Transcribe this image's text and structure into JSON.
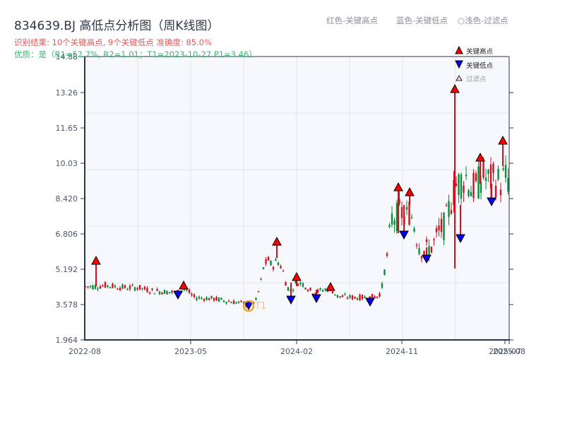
{
  "header": {
    "title": "834639.BJ 高低点分析图（周K线图）",
    "result_line": "识别结果: 10个关键高点, 9个关键低点  准确度: 85.0%",
    "quality_line": "优质：是（R1=52.7%, R2=1.01；T1=2023-10-27 P1=3.46）"
  },
  "top_legend": {
    "red_label": "红色-关键高点",
    "blue_label": "蓝色-关键低点",
    "light_label": "○浅色-过滤点"
  },
  "colors": {
    "up": "#d0101e",
    "down": "#0b8a3a",
    "high_marker": "#ff0000",
    "low_marker": "#0000ee",
    "plot_bg": "#f7f8fb",
    "grid": "#e2e4e8",
    "axis": "#2d3748",
    "t1_ring": "#f0a030"
  },
  "chart_data": {
    "type": "candlestick",
    "title": "834639.BJ 高低点分析图（周K线图）",
    "xlabel": "",
    "ylabel": "",
    "ylim": [
      1.964,
      14.88
    ],
    "yticks": [
      "14.88",
      "13.26",
      "11.65",
      "10.03",
      "8.420",
      "6.806",
      "5.192",
      "3.578",
      "1.964"
    ],
    "xticks": [
      "2022-08",
      "2023-05",
      "2024-02",
      "2024-11",
      "2025-07",
      "2025-08"
    ],
    "grid": true,
    "legend": {
      "position": "upper right",
      "entries": [
        "关键高点",
        "关键低点",
        "过滤点"
      ]
    },
    "key_highs": [
      {
        "date": "2022-09",
        "value": 5.5
      },
      {
        "date": "2023-04",
        "value": 4.5
      },
      {
        "date": "2023-12",
        "value": 6.4
      },
      {
        "date": "2024-02",
        "value": 4.8
      },
      {
        "date": "2024-04",
        "value": 4.4
      },
      {
        "date": "2024-10",
        "value": 9.0
      },
      {
        "date": "2024-11",
        "value": 8.7
      },
      {
        "date": "2025-03",
        "value": 13.4
      },
      {
        "date": "2025-05",
        "value": 10.4
      },
      {
        "date": "2025-07",
        "value": 11.1
      }
    ],
    "key_lows": [
      {
        "date": "2023-04",
        "value": 4.05
      },
      {
        "date": "2023-10",
        "value": 3.46
      },
      {
        "date": "2024-02",
        "value": 3.82
      },
      {
        "date": "2024-03",
        "value": 3.85
      },
      {
        "date": "2024-07",
        "value": 3.72
      },
      {
        "date": "2024-11",
        "value": 6.85
      },
      {
        "date": "2024-12",
        "value": 5.65
      },
      {
        "date": "2025-03",
        "value": 6.6
      },
      {
        "date": "2025-06",
        "value": 8.35
      }
    ],
    "annotations": [
      {
        "label": "T1",
        "date": "2023-10-27",
        "value": 3.46
      }
    ],
    "series": [
      {
        "name": "weekly_close_approx",
        "x": [
          "2022-08",
          "2022-10",
          "2022-12",
          "2023-02",
          "2023-04",
          "2023-06",
          "2023-08",
          "2023-10",
          "2023-12",
          "2024-02",
          "2024-04",
          "2024-06",
          "2024-08",
          "2024-10",
          "2024-12",
          "2025-02",
          "2025-04",
          "2025-06",
          "2025-08"
        ],
        "values": [
          4.4,
          4.4,
          4.3,
          4.2,
          4.1,
          3.9,
          3.8,
          3.6,
          5.6,
          4.3,
          4.3,
          3.9,
          3.9,
          7.5,
          6.1,
          7.8,
          9.0,
          9.0,
          9.2
        ]
      }
    ]
  },
  "legend": {
    "high": "关键高点",
    "low": "关键低点",
    "filtered": "过滤点"
  },
  "t1_label": "T1"
}
